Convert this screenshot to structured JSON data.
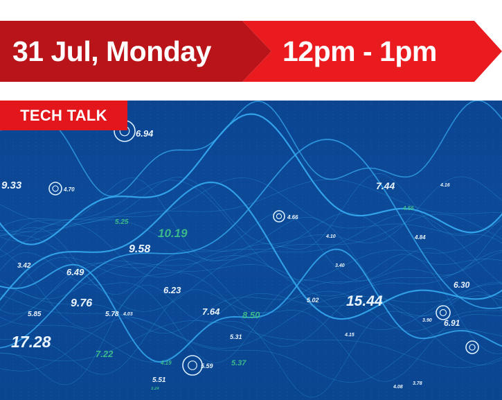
{
  "event": {
    "date": "31 Jul, Monday",
    "time": "12pm - 1pm",
    "category": "TECH TALK"
  },
  "colors": {
    "banner_dark_red": "#b8141a",
    "banner_red": "#ea1b1f",
    "tag_red": "#e3161c",
    "background_blue": "#0b4592",
    "line_cyan": "#35a8ee",
    "label_green": "#3fc48a"
  },
  "graph_labels": {
    "white": [
      "6.94",
      "9.33",
      "4.70",
      "9.58",
      "6.49",
      "9.76",
      "3.42",
      "5.85",
      "17.28",
      "5.78",
      "4.03",
      "6.23",
      "7.64",
      "5.31",
      "5.51",
      "5.59",
      "4.66",
      "5.02",
      "15.44",
      "4.10",
      "3.40",
      "7.44",
      "4.16",
      "6.30",
      "6.91",
      "3.90",
      "4.15",
      "4.08",
      "3.78",
      "4.84"
    ],
    "green": [
      "10.19",
      "5.25",
      "8.50",
      "7.22",
      "5.37",
      "4.56",
      "3.24",
      "4.19"
    ]
  }
}
